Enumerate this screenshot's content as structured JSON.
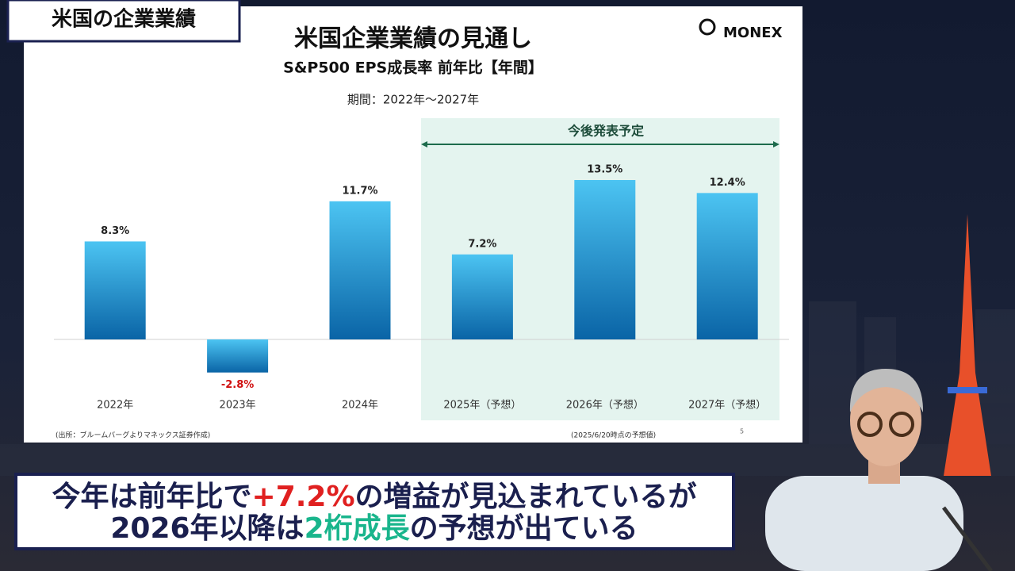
{
  "badge": "米国の企業業績",
  "logo": "MONEX",
  "chart_data": {
    "type": "bar",
    "title": "米国企業業績の見通し",
    "subtitle": "S&P500 EPS成長率 前年比【年間】",
    "period": "期間：2022年～2027年",
    "forecast_label": "今後発表予定",
    "categories": [
      "2022年",
      "2023年",
      "2024年",
      "2025年（予想）",
      "2026年（予想）",
      "2027年（予想）"
    ],
    "values": [
      8.3,
      -2.8,
      11.7,
      7.2,
      13.5,
      12.4
    ],
    "value_labels": [
      "8.3%",
      "-2.8%",
      "11.7%",
      "7.2%",
      "13.5%",
      "12.4%"
    ],
    "color": "#1a8fd6",
    "source": "(出所：ブルームバーグよりマネックス証券作成)",
    "note": "(2025/6/20時点の予想値)",
    "page_number": "5"
  },
  "caption": {
    "line1": [
      "今年は前年比で",
      "+7.2%",
      "の増益が見込まれているが"
    ],
    "line2": [
      "2026年以降は",
      "2桁成長",
      "の予想が出ている"
    ]
  }
}
